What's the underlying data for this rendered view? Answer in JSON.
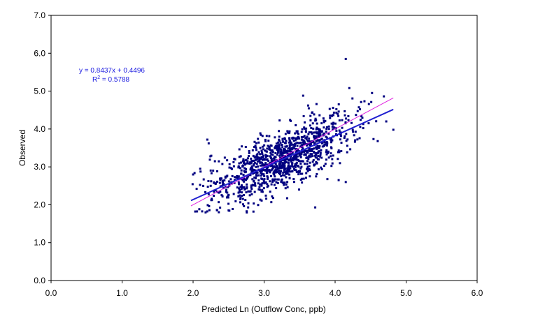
{
  "chart_data": {
    "type": "scatter",
    "title": "",
    "xlabel": "Predicted Ln (Outflow Conc, ppb)",
    "ylabel": "Observed",
    "xlim": [
      0,
      6
    ],
    "ylim": [
      0,
      7
    ],
    "x_ticks": [
      "0.0",
      "1.0",
      "2.0",
      "3.0",
      "4.0",
      "5.0",
      "6.0"
    ],
    "y_ticks": [
      "0.0",
      "1.0",
      "2.0",
      "3.0",
      "4.0",
      "5.0",
      "6.0",
      "7.0"
    ],
    "grid": false,
    "legend": "none",
    "annotations": {
      "equation": "y = 0.8437x + 0.4496",
      "r_squared_label": "R",
      "r_squared_exp": "2",
      "r_squared_value": " = 0.5788"
    },
    "trendline": {
      "slope": 0.8437,
      "intercept": 0.4496,
      "x_range": [
        1.97,
        4.82
      ],
      "color": "#1f1fd0"
    },
    "reference_line": {
      "slope": 1.0,
      "intercept": 0.0,
      "x_range": [
        1.97,
        4.82
      ],
      "color": "#e020e0"
    },
    "marker_color": "#000080",
    "series": [
      {
        "points_count": 1150,
        "outliers": [
          [
            4.15,
            5.85
          ],
          [
            4.2,
            5.08
          ],
          [
            2.2,
            3.72
          ],
          [
            2.0,
            2.8
          ],
          [
            4.15,
            2.6
          ],
          [
            4.05,
            2.65
          ],
          [
            3.72,
            1.93
          ],
          [
            4.82,
            3.98
          ],
          [
            4.72,
            4.2
          ],
          [
            2.05,
            2.42
          ],
          [
            3.55,
            4.88
          ],
          [
            2.5,
            1.85
          ],
          [
            2.85,
            1.82
          ],
          [
            4.52,
            4.95
          ],
          [
            2.22,
            3.62
          ],
          [
            4.35,
            4.52
          ],
          [
            2.1,
            2.95
          ],
          [
            4.6,
            3.68
          ],
          [
            3.62,
            4.62
          ]
        ]
      }
    ]
  }
}
